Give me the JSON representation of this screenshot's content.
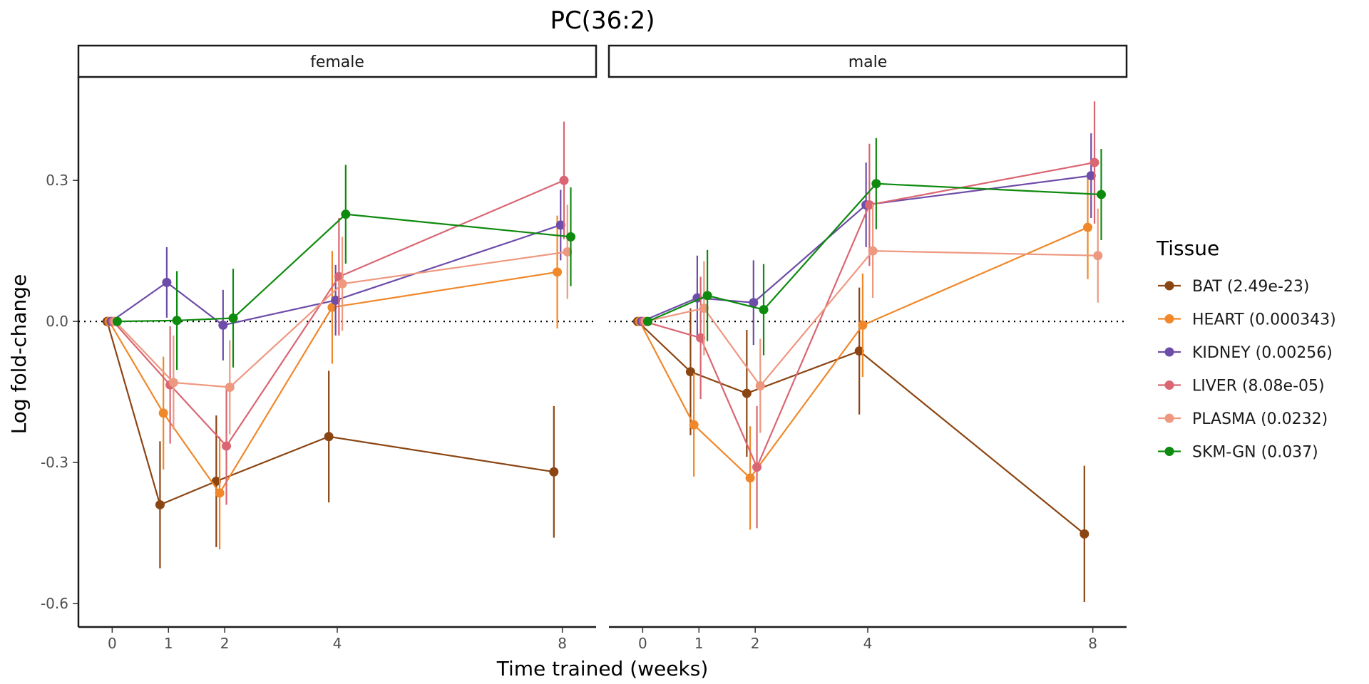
{
  "chart_data": {
    "type": "line",
    "title": "PC(36:2)",
    "xlabel": "Time trained (weeks)",
    "ylabel": "Log fold-change",
    "x_ticks": [
      0,
      1,
      2,
      4,
      8
    ],
    "y_ticks": [
      0.3,
      0.0,
      -0.3,
      -0.6
    ],
    "y_tick_labels": [
      "0.3",
      "0.0",
      "-0.3",
      "-0.6"
    ],
    "ylim": [
      -0.65,
      0.52
    ],
    "xlim": [
      -0.6,
      8.6
    ],
    "reference_line": 0,
    "legend_title": "Tissue",
    "legend_position": "right",
    "panels": [
      {
        "label": "female",
        "series": [
          {
            "name": "BAT (2.49e-23)",
            "color": "#8B4513",
            "dodge": -0.15,
            "x": [
              0,
              1,
              2,
              4,
              8
            ],
            "y": [
              0,
              -0.39,
              -0.34,
              -0.245,
              -0.32
            ],
            "err": [
              0,
              0.135,
              0.14,
              0.14,
              0.14
            ]
          },
          {
            "name": "HEART (0.000343)",
            "color": "#F0882A",
            "dodge": -0.09,
            "x": [
              0,
              1,
              2,
              4,
              8
            ],
            "y": [
              0,
              -0.195,
              -0.365,
              0.03,
              0.105
            ],
            "err": [
              0,
              0.12,
              0.12,
              0.12,
              0.12
            ]
          },
          {
            "name": "KIDNEY (0.00256)",
            "color": "#6E4CA9",
            "dodge": -0.03,
            "x": [
              0,
              1,
              2,
              4,
              8
            ],
            "y": [
              0,
              0.083,
              -0.008,
              0.045,
              0.205
            ],
            "err": [
              0,
              0.075,
              0.075,
              0.075,
              0.075
            ]
          },
          {
            "name": "LIVER (8.08e-05)",
            "color": "#D96672",
            "dodge": 0.03,
            "x": [
              0,
              1,
              2,
              4,
              8
            ],
            "y": [
              0,
              -0.135,
              -0.265,
              0.095,
              0.3
            ],
            "err": [
              0,
              0.125,
              0.125,
              0.125,
              0.125
            ]
          },
          {
            "name": "PLASMA (0.0232)",
            "color": "#EE9880",
            "dodge": 0.09,
            "x": [
              0,
              1,
              2,
              4,
              8
            ],
            "y": [
              0,
              -0.13,
              -0.14,
              0.08,
              0.148
            ],
            "err": [
              0,
              0.1,
              0.1,
              0.1,
              0.1
            ]
          },
          {
            "name": "SKM-GN (0.037)",
            "color": "#0E8A0E",
            "dodge": 0.15,
            "x": [
              0,
              1,
              2,
              4,
              8
            ],
            "y": [
              0,
              0.002,
              0.007,
              0.228,
              0.18
            ],
            "err": [
              0,
              0.105,
              0.105,
              0.105,
              0.105
            ]
          }
        ]
      },
      {
        "label": "male",
        "series": [
          {
            "name": "BAT (2.49e-23)",
            "color": "#8B4513",
            "dodge": -0.15,
            "x": [
              0,
              1,
              2,
              4,
              8
            ],
            "y": [
              0,
              -0.107,
              -0.153,
              -0.063,
              -0.452
            ],
            "err": [
              0,
              0.135,
              0.135,
              0.135,
              0.145
            ]
          },
          {
            "name": "HEART (0.000343)",
            "color": "#F0882A",
            "dodge": -0.09,
            "x": [
              0,
              1,
              2,
              4,
              8
            ],
            "y": [
              0,
              -0.22,
              -0.333,
              -0.008,
              0.2
            ],
            "err": [
              0,
              0.11,
              0.11,
              0.11,
              0.11
            ]
          },
          {
            "name": "KIDNEY (0.00256)",
            "color": "#6E4CA9",
            "dodge": -0.03,
            "x": [
              0,
              1,
              2,
              4,
              8
            ],
            "y": [
              0,
              0.05,
              0.04,
              0.248,
              0.31
            ],
            "err": [
              0,
              0.09,
              0.09,
              0.09,
              0.09
            ]
          },
          {
            "name": "LIVER (8.08e-05)",
            "color": "#D96672",
            "dodge": 0.03,
            "x": [
              0,
              1,
              2,
              4,
              8
            ],
            "y": [
              0,
              -0.035,
              -0.31,
              0.248,
              0.338
            ],
            "err": [
              0,
              0.13,
              0.13,
              0.13,
              0.13
            ]
          },
          {
            "name": "PLASMA (0.0232)",
            "color": "#EE9880",
            "dodge": 0.09,
            "x": [
              0,
              1,
              2,
              4,
              8
            ],
            "y": [
              0,
              0.028,
              -0.137,
              0.15,
              0.14
            ],
            "err": [
              0,
              0.1,
              0.1,
              0.1,
              0.1
            ]
          },
          {
            "name": "SKM-GN (0.037)",
            "color": "#0E8A0E",
            "dodge": 0.15,
            "x": [
              0,
              1,
              2,
              4,
              8
            ],
            "y": [
              0,
              0.055,
              0.025,
              0.293,
              0.27
            ],
            "err": [
              0,
              0.097,
              0.097,
              0.097,
              0.097
            ]
          }
        ]
      }
    ]
  }
}
